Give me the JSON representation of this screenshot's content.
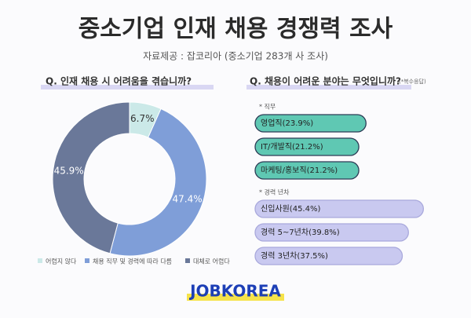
{
  "header": {
    "title": "중소기업 인재 채용 경쟁력 조사",
    "source": "자료제공 : 잡코리아 (중소기업 283개 사 조사)"
  },
  "chart_data": [
    {
      "type": "donut",
      "title": "Q. 인재 채용 시 어려움을 겪습니까?",
      "categories": [
        "어렵지 않다",
        "채용 직무 및 경력에 따라 다름",
        "대체로 어렵다"
      ],
      "values": [
        6.7,
        47.4,
        45.9
      ],
      "value_labels": [
        "6.7%",
        "47.4%",
        "45.9%"
      ],
      "colors": [
        "#cbe9e8",
        "#7f9ed8",
        "#6a7899"
      ]
    },
    {
      "type": "bar",
      "title": "Q. 채용이 어려운 분야는 무엇입니까?",
      "note": "(*복수응답)",
      "series": [
        {
          "name": "* 직무",
          "color": "#5fc8b3",
          "values": [
            23.9,
            21.2,
            21.2
          ],
          "value_labels": [
            "영업직(23.9%)",
            "IT/개발직(21.2%)",
            "마케팅/홍보직(21.2%)"
          ]
        },
        {
          "name": "* 경력 년차",
          "color": "#c9c9f0",
          "values": [
            45.4,
            39.8,
            37.5
          ],
          "value_labels": [
            "신입사원(45.4%)",
            "경력 5~7년차(39.8%)",
            "경력 3년차(37.5%)"
          ]
        }
      ]
    }
  ],
  "brand": "JOBKOREA"
}
